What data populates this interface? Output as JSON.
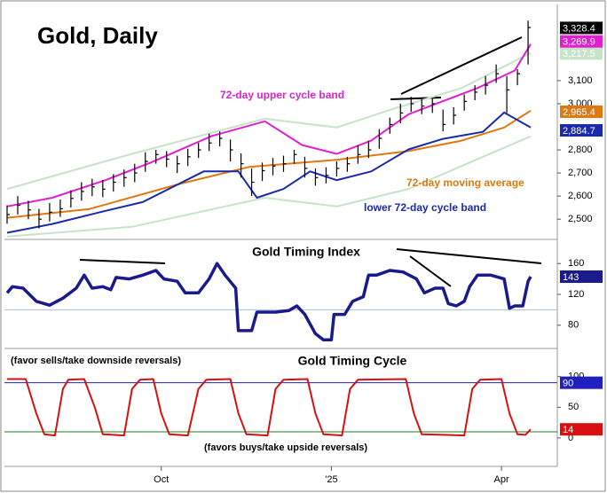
{
  "chart_data": [
    {
      "type": "ohlc",
      "title": "Gold, Daily",
      "xlim": [
        -1,
        207
      ],
      "ylim": [
        2420,
        3430
      ],
      "yticks": [
        {
          "value": 2500,
          "label": "2,500"
        },
        {
          "value": 2600,
          "label": "2,600"
        },
        {
          "value": 2700,
          "label": "2,700"
        },
        {
          "value": 2800,
          "label": "2,800"
        },
        {
          "value": 3000,
          "label": "3,000"
        },
        {
          "value": 3100,
          "label": "3,100"
        }
      ],
      "bars": {
        "color": "#000000",
        "x": [
          0,
          4,
          8,
          12,
          16,
          20,
          24,
          28,
          32,
          36,
          40,
          44,
          48,
          52,
          56,
          60,
          64,
          68,
          72,
          76,
          80,
          84,
          88,
          92,
          96,
          100,
          104,
          108,
          112,
          116,
          120,
          124,
          128,
          132,
          136,
          140,
          144,
          148,
          152,
          156,
          160,
          164,
          168,
          172,
          176,
          180,
          184,
          188,
          192,
          196
        ],
        "high": [
          2560,
          2600,
          2580,
          2545,
          2570,
          2585,
          2625,
          2660,
          2675,
          2670,
          2695,
          2715,
          2740,
          2790,
          2800,
          2795,
          2775,
          2805,
          2830,
          2870,
          2880,
          2845,
          2785,
          2720,
          2745,
          2765,
          2775,
          2800,
          2770,
          2720,
          2725,
          2750,
          2770,
          2820,
          2840,
          2890,
          2940,
          3000,
          3030,
          3020,
          3025,
          2975,
          2985,
          3040,
          3080,
          3120,
          3170,
          3120,
          3150,
          3360
        ],
        "low": [
          2480,
          2520,
          2500,
          2460,
          2490,
          2510,
          2550,
          2580,
          2600,
          2595,
          2620,
          2640,
          2660,
          2705,
          2740,
          2725,
          2700,
          2730,
          2765,
          2795,
          2815,
          2750,
          2680,
          2600,
          2665,
          2690,
          2705,
          2740,
          2680,
          2645,
          2655,
          2685,
          2705,
          2740,
          2765,
          2805,
          2870,
          2915,
          2965,
          2955,
          2960,
          2880,
          2910,
          2970,
          3015,
          3040,
          3090,
          2960,
          3080,
          3170
        ],
        "close": [
          2520,
          2560,
          2540,
          2500,
          2530,
          2545,
          2590,
          2620,
          2640,
          2630,
          2660,
          2680,
          2700,
          2750,
          2780,
          2760,
          2740,
          2770,
          2800,
          2830,
          2850,
          2800,
          2740,
          2660,
          2710,
          2730,
          2740,
          2780,
          2720,
          2680,
          2690,
          2720,
          2740,
          2780,
          2800,
          2850,
          2910,
          2960,
          3000,
          2990,
          3000,
          2910,
          2950,
          3010,
          3050,
          3080,
          3130,
          3060,
          3130,
          3330
        ],
        "end_label": {
          "value": 3328.4,
          "label": "3,328.4"
        }
      },
      "series": [
        {
          "color": "#c8e4c8",
          "x": [
            0,
            47,
            97,
            124,
            144,
            171,
            197
          ],
          "values": [
            2631,
            2783,
            2935,
            2897,
            2973,
            3068,
            3220
          ],
          "end_label": {
            "value": 3217.5,
            "label": "3,217.5"
          }
        },
        {
          "color": "#c8e4c8",
          "x": [
            0,
            47,
            97,
            124,
            151,
            197
          ],
          "values": [
            2425,
            2467,
            2593,
            2555,
            2631,
            2859
          ]
        },
        {
          "name": "72-day moving average",
          "color": "#e07810",
          "x": [
            0,
            31,
            64,
            91,
            124,
            151,
            171,
            187,
            197
          ],
          "values": [
            2506,
            2544,
            2650,
            2726,
            2757,
            2795,
            2840,
            2897,
            2970
          ],
          "end_label": {
            "value": 2965.4,
            "label": "2,965.4"
          }
        },
        {
          "name": "72-day upper cycle band",
          "color": "#e020d0",
          "x": [
            0,
            17,
            37,
            54,
            77,
            97,
            111,
            124,
            137,
            151,
            164,
            177,
            191,
            197
          ],
          "values": [
            2555,
            2593,
            2669,
            2745,
            2860,
            2924,
            2821,
            2783,
            2840,
            2954,
            3011,
            3068,
            3144,
            3258
          ],
          "end_label": {
            "value": 3269.9,
            "label": "3,269.9"
          }
        },
        {
          "name": "lower 72-day cycle band",
          "color": "#1a2aa8",
          "x": [
            0,
            17,
            37,
            51,
            74,
            87,
            94,
            104,
            114,
            124,
            137,
            151,
            164,
            179,
            187,
            197
          ],
          "values": [
            2441,
            2479,
            2536,
            2574,
            2707,
            2707,
            2593,
            2631,
            2707,
            2669,
            2707,
            2802,
            2848,
            2878,
            2962,
            2897
          ],
          "end_label": {
            "value": 2884.7,
            "label": "2,884.7"
          }
        }
      ]
    },
    {
      "type": "line",
      "title": "Gold Timing Index",
      "xlim": [
        -1,
        207
      ],
      "ylim": [
        51,
        189
      ],
      "yticks": [
        80,
        120,
        160
      ],
      "hlines": [
        {
          "value": 100,
          "color": "#a8c0d8"
        }
      ],
      "series": [
        {
          "color": "#1a1a8c",
          "x": [
            0,
            2,
            6,
            11,
            16,
            21,
            26,
            29,
            32,
            36,
            39,
            41,
            46,
            51,
            56,
            59,
            64,
            67,
            72,
            76,
            79,
            82,
            86,
            87,
            92,
            94,
            101,
            106,
            109,
            112,
            116,
            119,
            122,
            123,
            127,
            130,
            134,
            136,
            139,
            144,
            149,
            154,
            157,
            161,
            164,
            166,
            169,
            172,
            174,
            177,
            182,
            187,
            189,
            191,
            194,
            196,
            197
          ],
          "values": [
            122,
            130,
            128,
            111,
            106,
            115,
            128,
            145,
            128,
            130,
            126,
            142,
            140,
            145,
            151,
            140,
            137,
            122,
            122,
            140,
            160,
            145,
            128,
            73,
            73,
            97,
            97,
            99,
            105,
            94,
            69,
            61,
            61,
            94,
            94,
            111,
            117,
            145,
            145,
            151,
            149,
            140,
            122,
            128,
            128,
            108,
            105,
            111,
            130,
            145,
            145,
            140,
            102,
            105,
            105,
            137,
            143
          ],
          "end_label": 143
        }
      ]
    },
    {
      "type": "line",
      "title": "Gold Timing Cycle",
      "xlim": [
        -1,
        207
      ],
      "ylim": [
        -45,
        143
      ],
      "yticks": [
        0,
        50,
        100
      ],
      "xticks": [
        {
          "value": 58,
          "label": "Oct"
        },
        {
          "value": 122,
          "label": "'25"
        },
        {
          "value": 186,
          "label": "Apr"
        }
      ],
      "annotations": [
        "(favor sells/take downside reversals)",
        "(favors buys/take upside reversals)"
      ],
      "hlines": [
        {
          "value": 90,
          "color": "#2020c0",
          "end_label": 90
        },
        {
          "value": 10,
          "color": "#208020"
        }
      ],
      "series": [
        {
          "color": "#d81010",
          "x": [
            0,
            7,
            11,
            14,
            18,
            21,
            23,
            29,
            33,
            36,
            44,
            47,
            50,
            55,
            58,
            61,
            68,
            72,
            75,
            84,
            87,
            90,
            98,
            101,
            104,
            113,
            116,
            119,
            126,
            129,
            132,
            150,
            153,
            156,
            172,
            175,
            178,
            186,
            189,
            192,
            195,
            197
          ],
          "values": [
            96,
            96,
            40,
            6,
            4,
            80,
            95,
            96,
            50,
            6,
            4,
            80,
            95,
            96,
            40,
            6,
            4,
            80,
            95,
            96,
            40,
            6,
            4,
            80,
            95,
            96,
            40,
            6,
            4,
            80,
            95,
            96,
            40,
            6,
            4,
            80,
            95,
            96,
            40,
            6,
            5,
            14
          ],
          "end_label": 14
        }
      ]
    }
  ]
}
